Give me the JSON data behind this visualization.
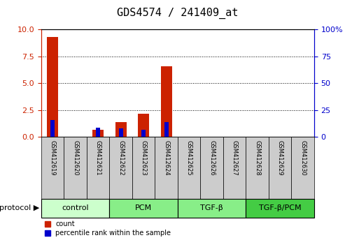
{
  "title": "GDS4574 / 241409_at",
  "samples": [
    "GSM412619",
    "GSM412620",
    "GSM412621",
    "GSM412622",
    "GSM412623",
    "GSM412624",
    "GSM412625",
    "GSM412626",
    "GSM412627",
    "GSM412628",
    "GSM412629",
    "GSM412630"
  ],
  "count_values": [
    9.3,
    0.0,
    0.7,
    1.4,
    2.2,
    6.6,
    0.0,
    0.0,
    0.0,
    0.0,
    0.0,
    0.0
  ],
  "percentile_values_pct": [
    16.0,
    0.0,
    9.0,
    8.0,
    7.0,
    14.0,
    0.0,
    0.0,
    0.0,
    0.0,
    0.0,
    0.0
  ],
  "count_color": "#cc2200",
  "percentile_color": "#0000cc",
  "ylim_left": [
    0,
    10
  ],
  "ylim_right": [
    0,
    100
  ],
  "yticks_left": [
    0,
    2.5,
    5.0,
    7.5,
    10.0
  ],
  "yticks_right": [
    0,
    25,
    50,
    75,
    100
  ],
  "groups": [
    {
      "label": "control",
      "start": 0,
      "end": 2,
      "color": "#ccffcc"
    },
    {
      "label": "PCM",
      "start": 3,
      "end": 5,
      "color": "#88ee88"
    },
    {
      "label": "TGF-β",
      "start": 6,
      "end": 8,
      "color": "#88ee88"
    },
    {
      "label": "TGF-β/PCM",
      "start": 9,
      "end": 11,
      "color": "#44cc44"
    }
  ],
  "protocol_label": "protocol",
  "bar_width": 0.5,
  "sample_box_color": "#cccccc",
  "background_color": "#ffffff",
  "title_fontsize": 11,
  "tick_fontsize": 8,
  "sample_fontsize": 6,
  "group_fontsize": 8,
  "legend_fontsize": 7
}
